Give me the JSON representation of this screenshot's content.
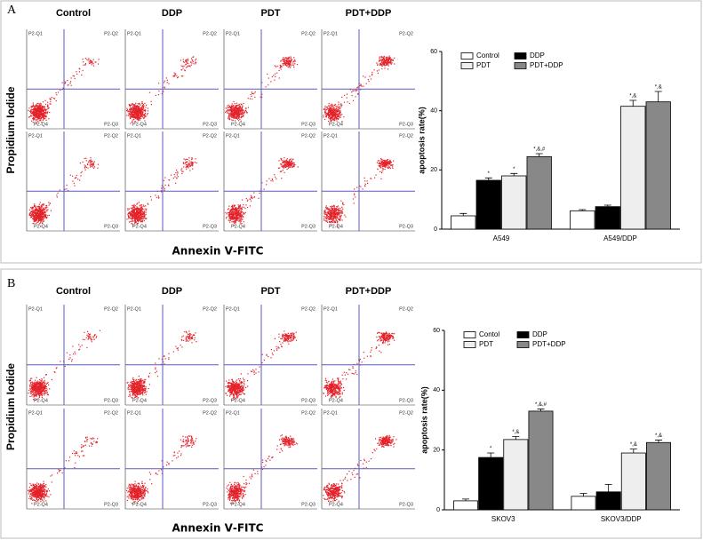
{
  "panels": [
    {
      "label": "A",
      "conditions": [
        "Control",
        "DDP",
        "PDT",
        "PDT+DDP"
      ]
    },
    {
      "label": "B",
      "conditions": [
        "Control",
        "DDP",
        "PDT",
        "PDT+DDP"
      ]
    }
  ],
  "flow_y_label": "Propidium Iodide",
  "flow_x_label": "Annexin Ⅴ-FITC",
  "quadrant_labels": [
    "P2-Q1",
    "P2-Q2",
    "P2-Q3",
    "P2-Q4"
  ],
  "chart_data": [
    {
      "type": "bar",
      "ylabel": "apoptosis rate(%)",
      "categories": [
        "A549",
        "A549/DDP"
      ],
      "ylim": [
        0,
        60
      ],
      "yticks": [
        0,
        20,
        40,
        60
      ],
      "legend": "upper left",
      "series": [
        {
          "name": "Control",
          "color": "#ffffff",
          "values": [
            4.5,
            6.2
          ],
          "errors": [
            0.8,
            0.4
          ],
          "annotations": [
            null,
            null
          ]
        },
        {
          "name": "DDP",
          "color": "#000000",
          "values": [
            16.5,
            7.6
          ],
          "errors": [
            0.8,
            0.5
          ],
          "annotations": [
            "*",
            null
          ]
        },
        {
          "name": "PDT",
          "color": "#eeeeee",
          "values": [
            18,
            41.5
          ],
          "errors": [
            0.8,
            2
          ],
          "annotations": [
            "*",
            "*,&"
          ]
        },
        {
          "name": "PDT+DDP",
          "color": "#888888",
          "values": [
            24.5,
            43
          ],
          "errors": [
            1,
            3.5
          ],
          "annotations": [
            "*,&,#",
            "*,&"
          ]
        }
      ]
    },
    {
      "type": "bar",
      "ylabel": "apoptosis rate(%)",
      "categories": [
        "SKOV3",
        "SKOV3/DDP"
      ],
      "ylim": [
        0,
        60
      ],
      "yticks": [
        0,
        20,
        40,
        60
      ],
      "legend": "upper left",
      "series": [
        {
          "name": "Contol",
          "color": "#ffffff",
          "values": [
            3,
            4.5
          ],
          "errors": [
            0.6,
            1
          ],
          "annotations": [
            null,
            null
          ]
        },
        {
          "name": "DDP",
          "color": "#000000",
          "values": [
            17.5,
            6
          ],
          "errors": [
            1.5,
            2.5
          ],
          "annotations": [
            "*",
            null
          ]
        },
        {
          "name": "PDT",
          "color": "#eeeeee",
          "values": [
            23.5,
            19
          ],
          "errors": [
            1,
            1.3
          ],
          "annotations": [
            "*,&",
            "*,&"
          ]
        },
        {
          "name": "PDT+DDP",
          "color": "#888888",
          "values": [
            33,
            22.5
          ],
          "errors": [
            0.7,
            0.8
          ],
          "annotations": [
            "*,&,#",
            "*,&"
          ]
        }
      ]
    }
  ]
}
